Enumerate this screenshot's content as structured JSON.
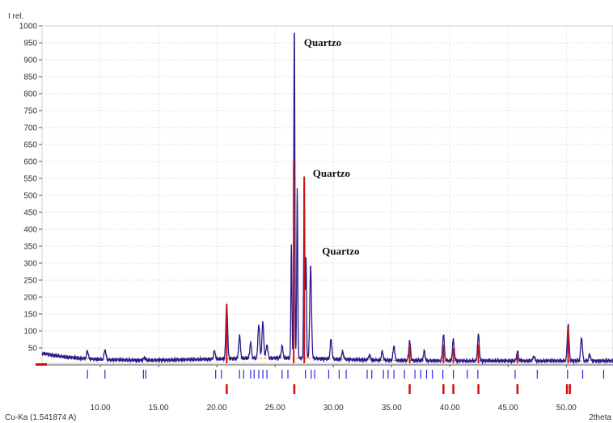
{
  "chart_data": {
    "type": "line",
    "ylabel": "I rel.",
    "xlabel": "2theta",
    "wavelength_label": "Cu-Ka (1.541874 A)",
    "xlim": [
      5,
      54
    ],
    "ylim": [
      0,
      1000
    ],
    "x_ticks": [
      "10.00",
      "15.00",
      "20.00",
      "25.00",
      "30.00",
      "35.00",
      "40.00",
      "45.00",
      "50.00"
    ],
    "y_ticks": [
      "50",
      "100",
      "150",
      "200",
      "250",
      "300",
      "350",
      "400",
      "450",
      "500",
      "550",
      "600",
      "650",
      "700",
      "750",
      "800",
      "850",
      "900",
      "950",
      "1000"
    ],
    "grid": true,
    "colors": {
      "observed": "#2b1a8a",
      "reference": "#d01010",
      "reference_markers": "#d01010",
      "phase_markers": "#2a2ae0",
      "background": "#e08a20"
    },
    "annotations": [
      {
        "text": "Quartzo",
        "x": 26.65,
        "y": 940
      },
      {
        "text": "Quartzo",
        "x": 27.4,
        "y": 555
      },
      {
        "text": "Quartzo",
        "x": 28.2,
        "y": 325
      }
    ],
    "peaks": [
      {
        "x": 8.9,
        "y": 40
      },
      {
        "x": 10.4,
        "y": 45
      },
      {
        "x": 13.8,
        "y": 22
      },
      {
        "x": 19.8,
        "y": 40
      },
      {
        "x": 20.85,
        "y": 180
      },
      {
        "x": 21.95,
        "y": 85
      },
      {
        "x": 22.9,
        "y": 65
      },
      {
        "x": 23.6,
        "y": 120
      },
      {
        "x": 23.95,
        "y": 125
      },
      {
        "x": 24.3,
        "y": 60
      },
      {
        "x": 25.6,
        "y": 55
      },
      {
        "x": 26.4,
        "y": 350
      },
      {
        "x": 26.65,
        "y": 1000
      },
      {
        "x": 26.9,
        "y": 520
      },
      {
        "x": 27.5,
        "y": 555
      },
      {
        "x": 27.65,
        "y": 320
      },
      {
        "x": 28.05,
        "y": 290
      },
      {
        "x": 29.8,
        "y": 75
      },
      {
        "x": 30.8,
        "y": 40
      },
      {
        "x": 33.1,
        "y": 30
      },
      {
        "x": 34.2,
        "y": 40
      },
      {
        "x": 35.2,
        "y": 55
      },
      {
        "x": 36.55,
        "y": 70
      },
      {
        "x": 37.8,
        "y": 40
      },
      {
        "x": 39.45,
        "y": 90
      },
      {
        "x": 40.3,
        "y": 75
      },
      {
        "x": 42.45,
        "y": 90
      },
      {
        "x": 45.8,
        "y": 40
      },
      {
        "x": 47.2,
        "y": 25
      },
      {
        "x": 50.15,
        "y": 120
      },
      {
        "x": 51.3,
        "y": 80
      },
      {
        "x": 52.0,
        "y": 30
      }
    ],
    "reference_peaks": [
      {
        "x": 20.85,
        "y": 180
      },
      {
        "x": 26.6,
        "y": 600
      },
      {
        "x": 27.5,
        "y": 555
      },
      {
        "x": 36.55,
        "y": 55
      },
      {
        "x": 39.45,
        "y": 60
      },
      {
        "x": 40.3,
        "y": 50
      },
      {
        "x": 42.45,
        "y": 60
      },
      {
        "x": 45.8,
        "y": 35
      },
      {
        "x": 50.15,
        "y": 110
      }
    ],
    "reference_markers_x": [
      20.85,
      26.65,
      36.55,
      39.45,
      40.3,
      42.45,
      45.8,
      50.05,
      50.3
    ],
    "phase_markers_x": [
      8.9,
      10.4,
      13.7,
      13.9,
      19.9,
      20.4,
      21.95,
      22.3,
      22.9,
      23.2,
      23.6,
      23.95,
      24.3,
      25.6,
      26.1,
      27.6,
      28.1,
      28.4,
      29.6,
      30.5,
      31.1,
      32.9,
      33.3,
      34.3,
      34.7,
      35.2,
      36.1,
      37.0,
      37.5,
      38.0,
      38.5,
      39.4,
      40.3,
      41.5,
      42.4,
      45.6,
      47.5,
      50.1,
      51.4,
      53.2
    ]
  }
}
